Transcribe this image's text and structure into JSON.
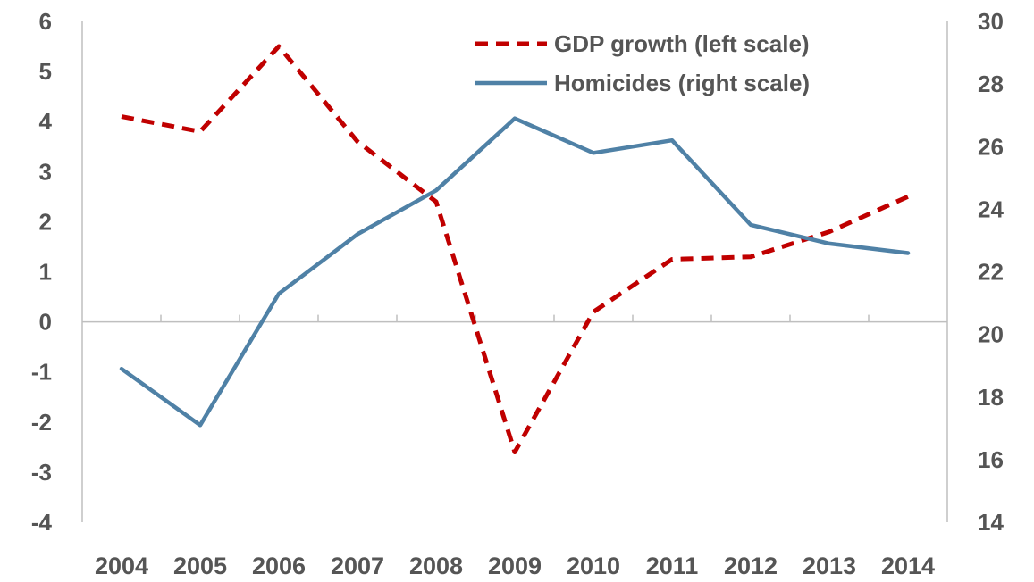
{
  "chart_data": {
    "type": "line",
    "title": "",
    "x": [
      "2004",
      "2005",
      "2006",
      "2007",
      "2008",
      "2009",
      "2010",
      "2011",
      "2012",
      "2013",
      "2014"
    ],
    "series": [
      {
        "name": "GDP growth (left scale)",
        "axis": "left",
        "style": "dashed",
        "color": "#c00000",
        "values": [
          4.1,
          3.8,
          5.5,
          3.6,
          2.4,
          -2.6,
          0.2,
          1.25,
          1.3,
          1.8,
          2.5
        ]
      },
      {
        "name": "Homicides (right scale)",
        "axis": "right",
        "style": "solid",
        "color": "#4f81a6",
        "values": [
          18.9,
          17.1,
          21.3,
          23.2,
          24.6,
          26.9,
          25.8,
          26.2,
          23.5,
          22.9,
          22.6
        ]
      }
    ],
    "left_axis": {
      "ylim": [
        -4,
        6
      ],
      "ticks": [
        "6",
        "5",
        "4",
        "3",
        "2",
        "1",
        "0",
        "-1",
        "-2",
        "-3",
        "-4"
      ]
    },
    "right_axis": {
      "ylim": [
        14,
        30
      ],
      "ticks": [
        "30",
        "28",
        "26",
        "24",
        "22",
        "20",
        "18",
        "16",
        "14"
      ]
    },
    "grid": false,
    "legend_position": "top-right",
    "axis_color": "#bfbfbf",
    "label_color": "#555555"
  }
}
